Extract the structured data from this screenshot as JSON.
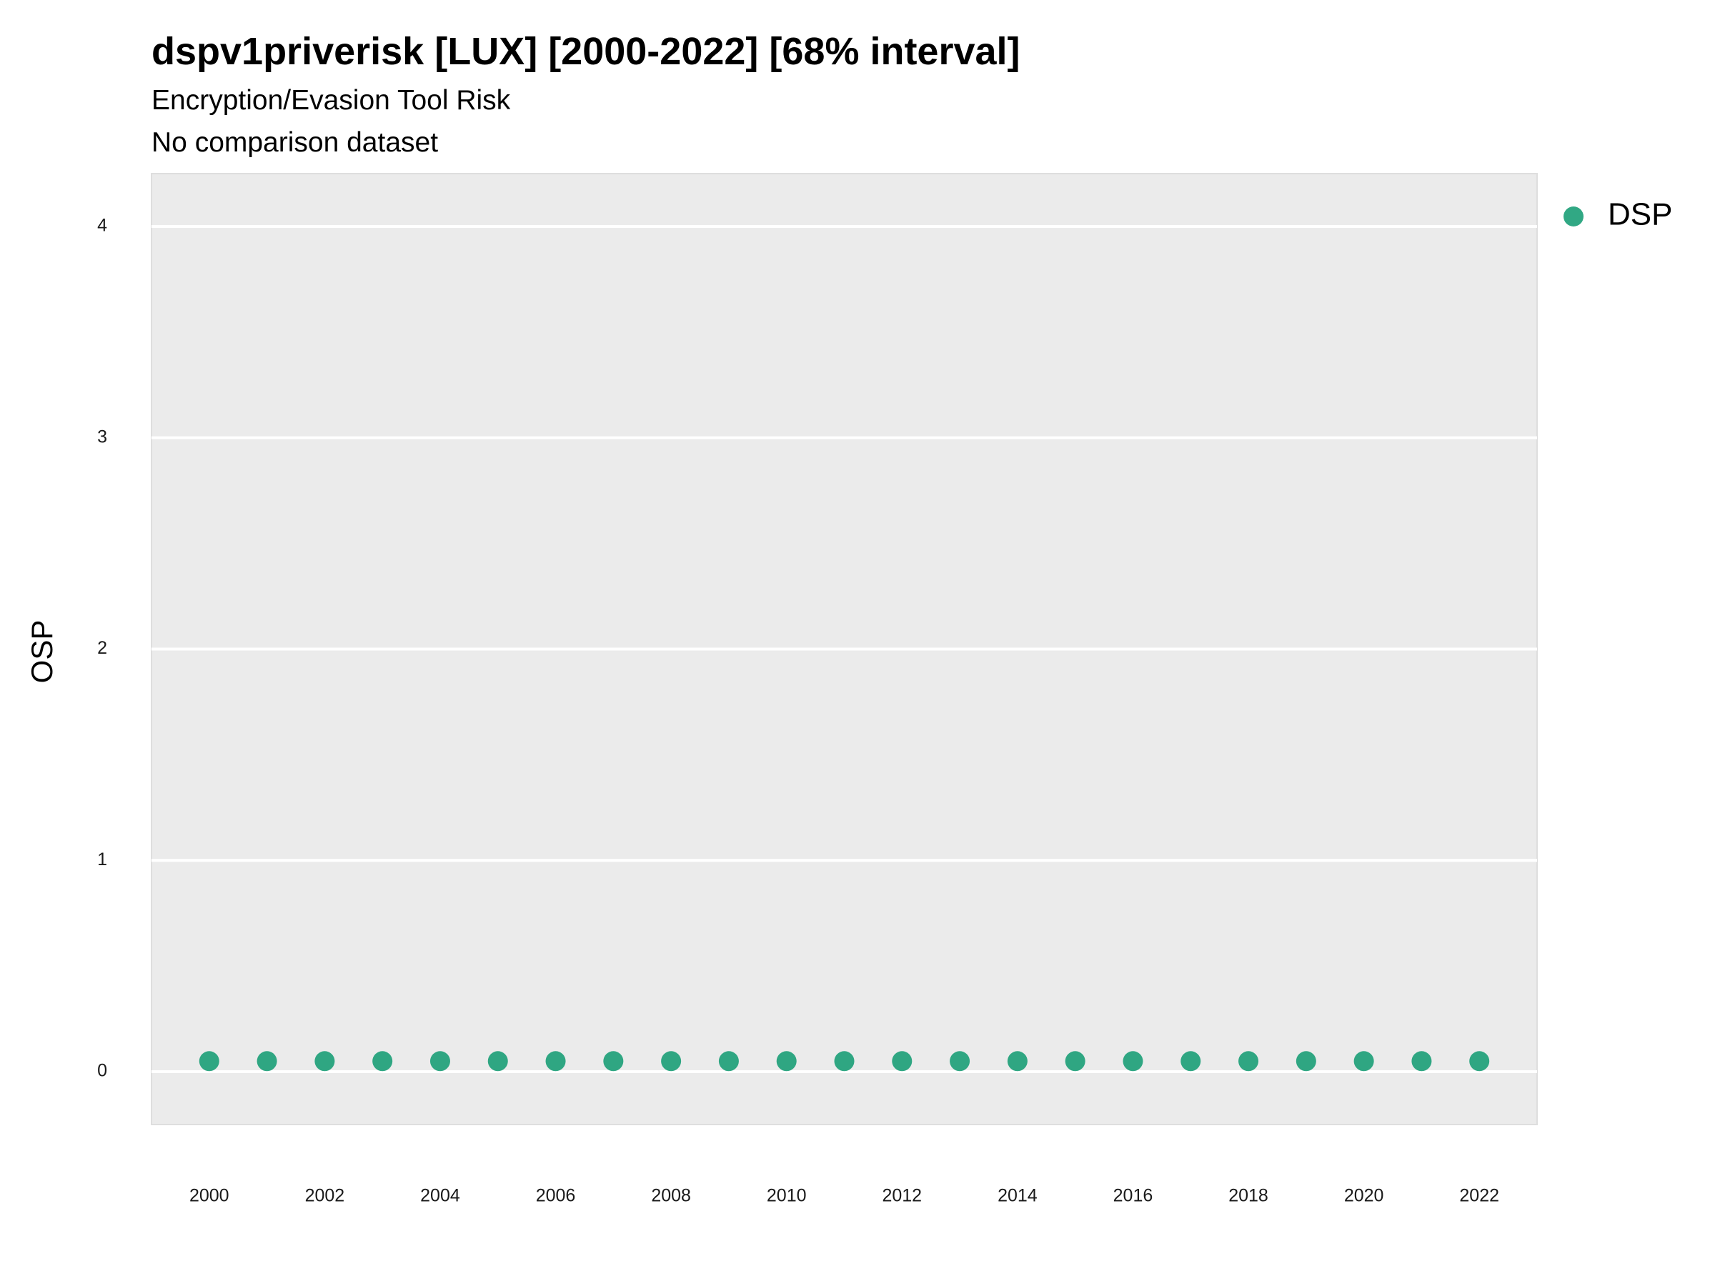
{
  "chart_data": {
    "type": "scatter",
    "title": "dspv1priverisk [LUX] [2000-2022] [68% interval]",
    "subtitle": [
      "Encryption/Evasion Tool Risk",
      "No comparison dataset"
    ],
    "y_label": "OSP",
    "x": [
      2000,
      2001,
      2002,
      2003,
      2004,
      2005,
      2006,
      2007,
      2008,
      2009,
      2010,
      2011,
      2012,
      2013,
      2014,
      2015,
      2016,
      2017,
      2018,
      2019,
      2020,
      2021,
      2022
    ],
    "series": [
      {
        "name": "DSP",
        "color": "#1b9e77",
        "values": [
          0.05,
          0.05,
          0.05,
          0.05,
          0.05,
          0.05,
          0.05,
          0.05,
          0.05,
          0.05,
          0.05,
          0.05,
          0.05,
          0.05,
          0.05,
          0.05,
          0.05,
          0.05,
          0.05,
          0.05,
          0.05,
          0.05,
          0.05
        ]
      }
    ],
    "xlim": [
      1999,
      2023
    ],
    "xticks": [
      2000,
      2002,
      2004,
      2006,
      2008,
      2010,
      2012,
      2014,
      2016,
      2018,
      2020,
      2022
    ],
    "ylim": [
      -0.25,
      4.25
    ],
    "yticks": [
      0,
      1,
      2,
      3,
      4
    ],
    "grid": true,
    "legend": "right"
  }
}
